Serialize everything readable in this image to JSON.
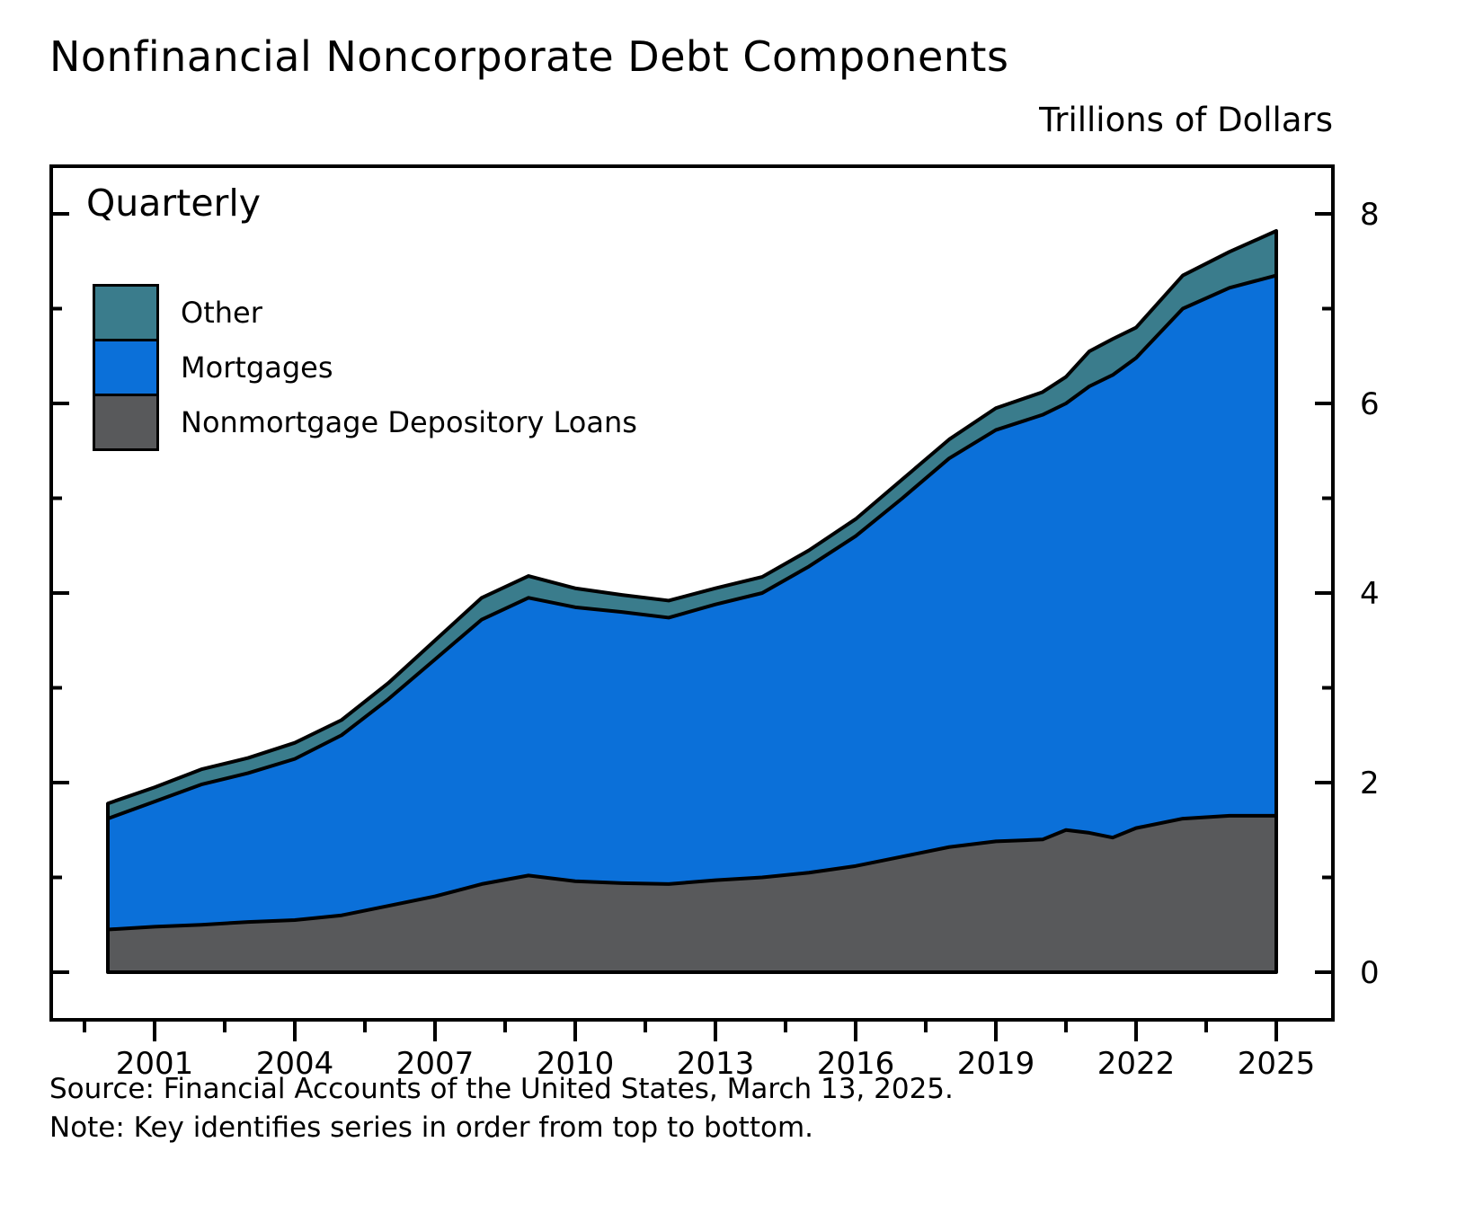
{
  "chart_data": {
    "type": "area",
    "stacked": true,
    "title": "Nonfinancial Noncorporate Debt Components",
    "units_label": "Trillions of Dollars",
    "frequency_label": "Quarterly",
    "source": "Source: Financial Accounts of the United States, March 13, 2025.",
    "note": "Note: Key identifies series in order from top to bottom.",
    "x": [
      2000,
      2001,
      2002,
      2003,
      2004,
      2005,
      2006,
      2007,
      2008,
      2009,
      2010,
      2011,
      2012,
      2013,
      2014,
      2015,
      2016,
      2017,
      2018,
      2019,
      2020,
      2020.5,
      2021,
      2021.5,
      2022,
      2023,
      2024,
      2025
    ],
    "series": [
      {
        "name": "Nonmortgage Depository Loans",
        "color": "#58595B",
        "values": [
          0.45,
          0.48,
          0.5,
          0.53,
          0.55,
          0.6,
          0.7,
          0.8,
          0.93,
          1.02,
          0.96,
          0.94,
          0.93,
          0.97,
          1.0,
          1.05,
          1.12,
          1.22,
          1.32,
          1.38,
          1.4,
          1.5,
          1.47,
          1.42,
          1.52,
          1.62,
          1.65,
          1.65
        ]
      },
      {
        "name": "Mortgages",
        "color": "#0B70D9",
        "values": [
          1.17,
          1.32,
          1.48,
          1.57,
          1.7,
          1.9,
          2.18,
          2.5,
          2.79,
          2.93,
          2.89,
          2.86,
          2.81,
          2.91,
          3.0,
          3.23,
          3.48,
          3.78,
          4.1,
          4.34,
          4.48,
          4.5,
          4.71,
          4.88,
          4.96,
          5.38,
          5.57,
          5.7
        ]
      },
      {
        "name": "Other",
        "color": "#3A7C8C",
        "values": [
          0.16,
          0.15,
          0.16,
          0.16,
          0.17,
          0.16,
          0.17,
          0.2,
          0.23,
          0.23,
          0.2,
          0.18,
          0.18,
          0.17,
          0.17,
          0.17,
          0.18,
          0.2,
          0.2,
          0.23,
          0.24,
          0.28,
          0.37,
          0.38,
          0.32,
          0.35,
          0.38,
          0.47
        ]
      }
    ],
    "stack_order": "bottom to top",
    "legend": [
      {
        "label": "Other",
        "color": "#3A7C8C"
      },
      {
        "label": "Mortgages",
        "color": "#0B70D9"
      },
      {
        "label": "Nonmortgage Depository Loans",
        "color": "#58595B"
      }
    ],
    "yticks": [
      0,
      2,
      4,
      6,
      8
    ],
    "ylim": [
      0,
      8.5
    ],
    "xticks": [
      2001,
      2004,
      2007,
      2010,
      2013,
      2016,
      2019,
      2022,
      2025
    ],
    "grid": false,
    "legend_position": "upper left inside plot"
  }
}
